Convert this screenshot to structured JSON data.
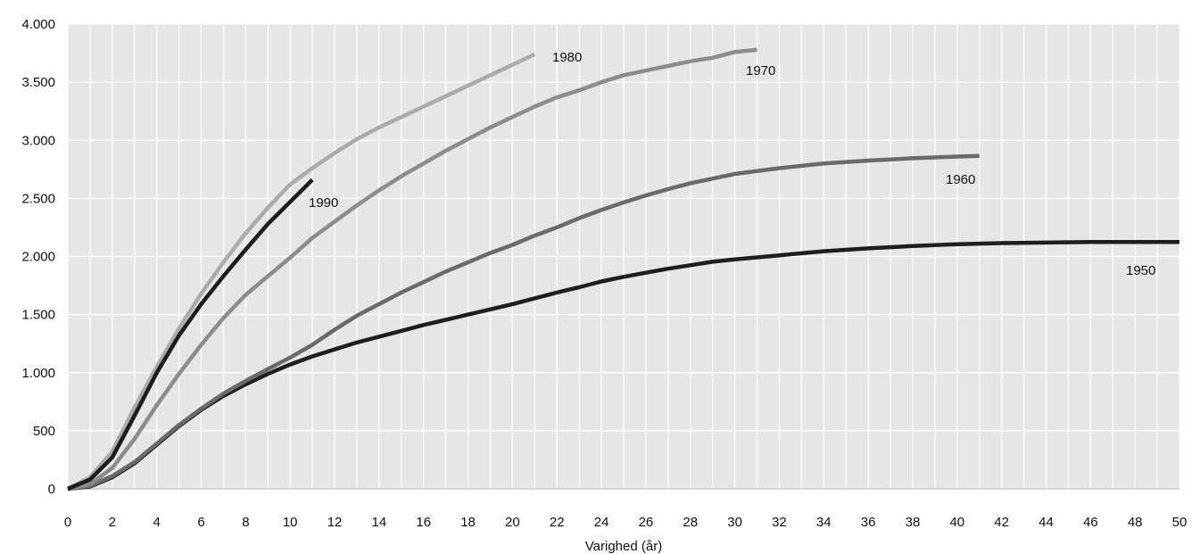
{
  "chart_data": {
    "type": "line",
    "title": "",
    "xlabel": "Varighed (år)",
    "ylabel": "",
    "xlim": [
      0,
      50
    ],
    "ylim": [
      0,
      4000
    ],
    "x_ticks": [
      0,
      2,
      4,
      6,
      8,
      10,
      12,
      14,
      16,
      18,
      20,
      22,
      24,
      26,
      28,
      30,
      32,
      34,
      36,
      38,
      40,
      42,
      44,
      46,
      48,
      50
    ],
    "y_ticks": [
      0,
      500,
      1000,
      1500,
      2000,
      2500,
      3000,
      3500,
      4000
    ],
    "y_tick_labels": [
      "0",
      "500",
      "1.000",
      "1.500",
      "2.000",
      "2.500",
      "3.000",
      "3.500",
      "4.000"
    ],
    "grid": "vertical and horizontal",
    "legend": "none (series labelled directly on the lines)",
    "series": [
      {
        "name": "1950",
        "color": "#1e1e1e",
        "x": [
          0,
          1,
          2,
          3,
          4,
          5,
          6,
          7,
          8,
          9,
          10,
          11,
          12,
          13,
          14,
          15,
          16,
          17,
          18,
          19,
          20,
          21,
          22,
          23,
          24,
          25,
          26,
          27,
          28,
          29,
          30,
          32,
          34,
          36,
          38,
          40,
          42,
          44,
          46,
          48,
          50
        ],
        "y": [
          0,
          20,
          100,
          220,
          380,
          540,
          680,
          800,
          900,
          990,
          1070,
          1140,
          1200,
          1260,
          1310,
          1360,
          1410,
          1455,
          1500,
          1545,
          1590,
          1640,
          1690,
          1735,
          1785,
          1825,
          1860,
          1895,
          1925,
          1955,
          1975,
          2010,
          2045,
          2070,
          2090,
          2105,
          2115,
          2120,
          2125,
          2125,
          2125
        ]
      },
      {
        "name": "1960",
        "color": "#6a6a6a",
        "x": [
          0,
          1,
          2,
          3,
          4,
          5,
          6,
          7,
          8,
          9,
          10,
          11,
          12,
          13,
          14,
          15,
          16,
          17,
          18,
          19,
          20,
          21,
          22,
          23,
          24,
          25,
          26,
          27,
          28,
          29,
          30,
          32,
          34,
          36,
          38,
          40,
          41
        ],
        "y": [
          0,
          25,
          110,
          230,
          390,
          550,
          690,
          820,
          930,
          1030,
          1130,
          1240,
          1370,
          1490,
          1590,
          1690,
          1780,
          1870,
          1950,
          2030,
          2100,
          2180,
          2250,
          2330,
          2400,
          2465,
          2525,
          2580,
          2630,
          2670,
          2710,
          2760,
          2800,
          2825,
          2845,
          2860,
          2865
        ]
      },
      {
        "name": "1970",
        "color": "#8c8c8c",
        "x": [
          0,
          1,
          2,
          3,
          4,
          5,
          6,
          7,
          8,
          9,
          10,
          11,
          12,
          13,
          14,
          15,
          16,
          17,
          18,
          19,
          20,
          21,
          22,
          23,
          24,
          25,
          26,
          27,
          28,
          29,
          30,
          31
        ],
        "y": [
          0,
          40,
          180,
          430,
          720,
          990,
          1240,
          1470,
          1670,
          1830,
          1990,
          2160,
          2300,
          2440,
          2570,
          2690,
          2800,
          2910,
          3010,
          3110,
          3200,
          3290,
          3370,
          3430,
          3500,
          3560,
          3600,
          3640,
          3680,
          3710,
          3760,
          3780
        ]
      },
      {
        "name": "1980",
        "color": "#ababab",
        "x": [
          0,
          1,
          2,
          3,
          4,
          5,
          6,
          7,
          8,
          9,
          10,
          11,
          12,
          13,
          14,
          15,
          16,
          17,
          18,
          19,
          20,
          21
        ],
        "y": [
          0,
          100,
          320,
          700,
          1050,
          1380,
          1680,
          1950,
          2200,
          2420,
          2620,
          2760,
          2890,
          3010,
          3110,
          3200,
          3290,
          3380,
          3470,
          3560,
          3650,
          3740
        ]
      },
      {
        "name": "1990",
        "color": "#1c1c1c",
        "x": [
          0,
          1,
          2,
          3,
          4,
          5,
          6,
          7,
          8,
          9,
          10,
          11
        ],
        "y": [
          0,
          80,
          270,
          630,
          1000,
          1320,
          1590,
          1830,
          2060,
          2280,
          2470,
          2660
        ]
      }
    ],
    "annotations": [
      {
        "text": "1980",
        "series": "1980"
      },
      {
        "text": "1970",
        "series": "1970"
      },
      {
        "text": "1990",
        "series": "1990"
      },
      {
        "text": "1960",
        "series": "1960"
      },
      {
        "text": "1950",
        "series": "1950"
      }
    ]
  }
}
